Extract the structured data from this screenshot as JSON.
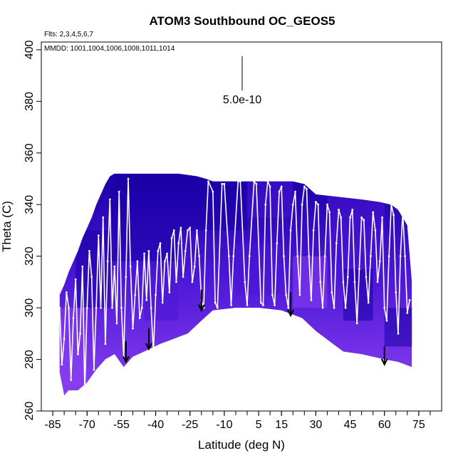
{
  "chart_data": {
    "type": "scatter",
    "title": "ATOM3 Southbound OC_GEOS5",
    "flights_note": "Flts: 2,3,4,5,6,7",
    "dates_note": "MMDD: 1001,1004,1006,1008,1011,1014",
    "xlabel": "Latitude (deg N)",
    "ylabel": "Theta (C)",
    "xlim": [
      -90,
      85
    ],
    "ylim": [
      260,
      403
    ],
    "x_ticks": [
      -85,
      -70,
      -55,
      -40,
      -25,
      -10,
      5,
      15,
      30,
      45,
      60,
      75
    ],
    "y_ticks": [
      260,
      280,
      300,
      320,
      340,
      360,
      380,
      400
    ],
    "scale_bar_label": "5.0e-10",
    "curtain_colors": {
      "dark": "#1a00a6",
      "mid": "#4a16d6",
      "light": "#8a3ff0"
    },
    "curtain_top": [
      [
        -82,
        305
      ],
      [
        -80,
        309
      ],
      [
        -78,
        314
      ],
      [
        -76,
        318
      ],
      [
        -74,
        322
      ],
      [
        -72,
        327
      ],
      [
        -70,
        331
      ],
      [
        -68,
        335
      ],
      [
        -66,
        340
      ],
      [
        -64,
        344
      ],
      [
        -62,
        348
      ],
      [
        -60,
        351
      ],
      [
        -58,
        352
      ],
      [
        -40,
        352
      ],
      [
        -30,
        352
      ],
      [
        -22,
        351
      ],
      [
        -18,
        350
      ],
      [
        -15,
        349
      ],
      [
        20,
        349
      ],
      [
        25,
        348
      ],
      [
        30,
        344
      ],
      [
        40,
        343
      ],
      [
        50,
        342
      ],
      [
        58,
        341
      ],
      [
        63,
        340
      ],
      [
        66,
        338
      ],
      [
        70,
        332
      ],
      [
        72,
        310
      ]
    ],
    "curtain_bottom": [
      [
        72,
        277
      ],
      [
        66,
        279
      ],
      [
        60,
        280
      ],
      [
        50,
        282
      ],
      [
        42,
        283
      ],
      [
        36,
        287
      ],
      [
        30,
        291
      ],
      [
        24,
        296
      ],
      [
        15,
        299
      ],
      [
        5,
        300
      ],
      [
        -5,
        300
      ],
      [
        -15,
        299
      ],
      [
        -20,
        295
      ],
      [
        -26,
        290
      ],
      [
        -32,
        288
      ],
      [
        -38,
        286
      ],
      [
        -45,
        283
      ],
      [
        -50,
        281
      ],
      [
        -54,
        277
      ],
      [
        -58,
        282
      ],
      [
        -62,
        280
      ],
      [
        -66,
        276
      ],
      [
        -70,
        271
      ],
      [
        -74,
        268
      ],
      [
        -78,
        268
      ],
      [
        -80,
        266
      ],
      [
        -82,
        275
      ]
    ],
    "flight_track": [
      [
        -82,
        300
      ],
      [
        -81,
        278
      ],
      [
        -80,
        288
      ],
      [
        -79,
        306
      ],
      [
        -78,
        300
      ],
      [
        -77,
        272
      ],
      [
        -76,
        296
      ],
      [
        -75,
        311
      ],
      [
        -74,
        282
      ],
      [
        -73,
        290
      ],
      [
        -72,
        316
      ],
      [
        -71,
        268
      ],
      [
        -70,
        300
      ],
      [
        -69,
        322
      ],
      [
        -68,
        312
      ],
      [
        -67,
        276
      ],
      [
        -66,
        300
      ],
      [
        -65,
        328
      ],
      [
        -64,
        300
      ],
      [
        -63,
        335
      ],
      [
        -62,
        286
      ],
      [
        -61,
        318
      ],
      [
        -60,
        342
      ],
      [
        -59,
        300
      ],
      [
        -58,
        316
      ],
      [
        -57,
        294
      ],
      [
        -56,
        345
      ],
      [
        -55,
        300
      ],
      [
        -54,
        281
      ],
      [
        -53,
        312
      ],
      [
        -52,
        350
      ],
      [
        -51,
        316
      ],
      [
        -50,
        292
      ],
      [
        -49,
        305
      ],
      [
        -48,
        318
      ],
      [
        -47,
        296
      ],
      [
        -46,
        300
      ],
      [
        -45,
        321
      ],
      [
        -44,
        303
      ],
      [
        -43,
        322
      ],
      [
        -42,
        300
      ],
      [
        -41,
        283
      ],
      [
        -40,
        305
      ],
      [
        -39,
        322
      ],
      [
        -38,
        325
      ],
      [
        -37,
        302
      ],
      [
        -36,
        318
      ],
      [
        -35,
        321
      ],
      [
        -34,
        306
      ],
      [
        -33,
        327
      ],
      [
        -32,
        330
      ],
      [
        -31,
        310
      ],
      [
        -30,
        325
      ],
      [
        -29,
        331
      ],
      [
        -28,
        312
      ],
      [
        -27,
        322
      ],
      [
        -26,
        330
      ],
      [
        -25,
        331
      ],
      [
        -24,
        310
      ],
      [
        -23,
        316
      ],
      [
        -22,
        330
      ],
      [
        -21,
        320
      ],
      [
        -20,
        303
      ],
      [
        -19,
        300
      ],
      [
        -18,
        330
      ],
      [
        -17,
        349
      ],
      [
        -15,
        345
      ],
      [
        -14,
        302
      ],
      [
        -13,
        300
      ],
      [
        -11,
        348
      ],
      [
        -10,
        348
      ],
      [
        -8,
        320
      ],
      [
        -7,
        301
      ],
      [
        -6,
        320
      ],
      [
        -4,
        349
      ],
      [
        -3,
        349
      ],
      [
        -1,
        310
      ],
      [
        0,
        301
      ],
      [
        1,
        320
      ],
      [
        3,
        349
      ],
      [
        4,
        348
      ],
      [
        6,
        302
      ],
      [
        7,
        301
      ],
      [
        8,
        340
      ],
      [
        9,
        349
      ],
      [
        10,
        347
      ],
      [
        11,
        305
      ],
      [
        12,
        301
      ],
      [
        13,
        325
      ],
      [
        14,
        345
      ],
      [
        15,
        347
      ],
      [
        16,
        320
      ],
      [
        17,
        305
      ],
      [
        18,
        300
      ],
      [
        19,
        330
      ],
      [
        20,
        340
      ],
      [
        21,
        345
      ],
      [
        22,
        320
      ],
      [
        23,
        305
      ],
      [
        24,
        340
      ],
      [
        25,
        347
      ],
      [
        26,
        346
      ],
      [
        27,
        320
      ],
      [
        28,
        303
      ],
      [
        29,
        330
      ],
      [
        30,
        341
      ],
      [
        31,
        340
      ],
      [
        32,
        310
      ],
      [
        33,
        300
      ],
      [
        34,
        320
      ],
      [
        35,
        340
      ],
      [
        36,
        337
      ],
      [
        37,
        306
      ],
      [
        38,
        300
      ],
      [
        39,
        325
      ],
      [
        40,
        338
      ],
      [
        41,
        335
      ],
      [
        42,
        310
      ],
      [
        43,
        300
      ],
      [
        44,
        312
      ],
      [
        45,
        335
      ],
      [
        46,
        338
      ],
      [
        47,
        310
      ],
      [
        48,
        294
      ],
      [
        49,
        315
      ],
      [
        50,
        335
      ],
      [
        51,
        334
      ],
      [
        52,
        312
      ],
      [
        53,
        302
      ],
      [
        54,
        320
      ],
      [
        55,
        337
      ],
      [
        56,
        330
      ],
      [
        57,
        310
      ],
      [
        58,
        318
      ],
      [
        59,
        335
      ],
      [
        60,
        300
      ],
      [
        61,
        295
      ],
      [
        62,
        320
      ],
      [
        63,
        340
      ],
      [
        64,
        336
      ],
      [
        65,
        306
      ],
      [
        66,
        290
      ],
      [
        67,
        320
      ],
      [
        68,
        337
      ],
      [
        69,
        320
      ],
      [
        70,
        298
      ],
      [
        71,
        303
      ]
    ],
    "arrows": [
      {
        "x": -53,
        "y_top": 287,
        "y_bottom": 279
      },
      {
        "x": -43,
        "y_top": 292,
        "y_bottom": 284
      },
      {
        "x": -20,
        "y_top": 307,
        "y_bottom": 299
      },
      {
        "x": 19,
        "y_top": 306,
        "y_bottom": 297
      },
      {
        "x": 60,
        "y_top": 285,
        "y_bottom": 278
      }
    ]
  }
}
